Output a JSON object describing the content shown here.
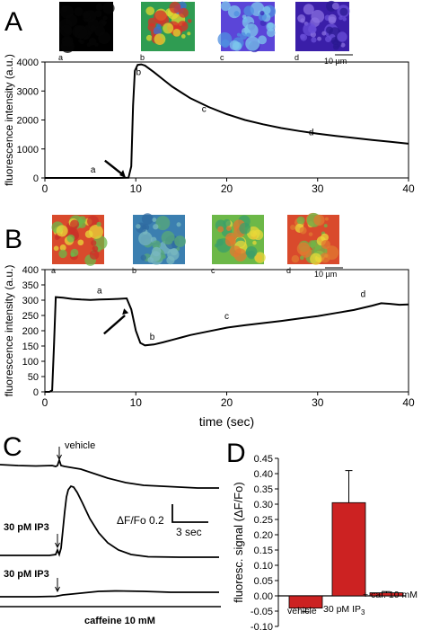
{
  "panels": {
    "A": {
      "letter": "A",
      "ylabel": "fluorescence intensity (a.u.)",
      "xticks": [
        "0",
        "10",
        "20",
        "30",
        "40"
      ],
      "yticks": [
        "0",
        "1000",
        "2000",
        "3000",
        "4000"
      ],
      "images": [
        {
          "label": "a",
          "colors": [
            "#000000",
            "#050505"
          ]
        },
        {
          "label": "b",
          "colors": [
            "#2f9c52",
            "#e0d832",
            "#d8322a",
            "#3d6fd0"
          ]
        },
        {
          "label": "c",
          "colors": [
            "#5b45d8",
            "#4f8fe0",
            "#7ec8ec",
            "#3a2cb8"
          ]
        },
        {
          "label": "d",
          "colors": [
            "#3a1ea8",
            "#6a4fd8",
            "#2a1890",
            "#8a70e0"
          ]
        }
      ],
      "scalebar": "10 µm",
      "curve_labels": [
        {
          "text": "a",
          "x": 5.3,
          "y": 180
        },
        {
          "text": "b",
          "x": 10.3,
          "y": 3550
        },
        {
          "text": "c",
          "x": 17.5,
          "y": 2280
        },
        {
          "text": "d",
          "x": 29.3,
          "y": 1480
        }
      ]
    },
    "B": {
      "letter": "B",
      "ylabel": "fluorescence intensity (a.u.)",
      "xlabel": "time (sec)",
      "xticks": [
        "0",
        "10",
        "20",
        "30",
        "40"
      ],
      "yticks": [
        "0",
        "50",
        "100",
        "150",
        "200",
        "250",
        "300",
        "350",
        "400"
      ],
      "images": [
        {
          "label": "a",
          "colors": [
            "#d94a2c",
            "#e8d838",
            "#6cb848",
            "#c83228"
          ]
        },
        {
          "label": "b",
          "colors": [
            "#3b7fb0",
            "#58a878",
            "#2f6aa0",
            "#7ab8c0"
          ]
        },
        {
          "label": "c",
          "colors": [
            "#6cb848",
            "#e8d838",
            "#e07a30",
            "#3b9f6a"
          ]
        },
        {
          "label": "d",
          "colors": [
            "#d94a2c",
            "#e8d838",
            "#6cb848",
            "#e07a30"
          ]
        }
      ],
      "scalebar": "10 µm",
      "curve_labels": [
        {
          "text": "a",
          "x": 6,
          "y": 322
        },
        {
          "text": "b",
          "x": 11.8,
          "y": 170
        },
        {
          "text": "c",
          "x": 20,
          "y": 238
        },
        {
          "text": "d",
          "x": 35,
          "y": 310
        }
      ]
    },
    "C": {
      "letter": "C",
      "labels": {
        "vehicle": "vehicle",
        "ip3_1": "30 pM IP3",
        "ip3_2": "30 pM IP3",
        "scale_y": "ΔF/Fo 0.2",
        "scale_x": "3 sec",
        "caffeine": "caffeine 10 mM"
      }
    },
    "D": {
      "letter": "D",
      "ylabel": "fluoresc. signal (ΔF/Fo)",
      "yticks": [
        "0.45",
        "0.40",
        "0.35",
        "0.30",
        "0.25",
        "0.20",
        "0.15",
        "0.10",
        "0.05",
        "0.00",
        "-0.05",
        "-0.10"
      ],
      "ip3_subscript": "3"
    }
  },
  "chart_data": [
    {
      "panel": "A",
      "type": "line",
      "xlabel": "",
      "ylabel": "fluorescence intensity (a.u.)",
      "xlim": [
        0,
        40
      ],
      "ylim": [
        0,
        4000
      ],
      "series": [
        {
          "x": [
            0,
            8.0,
            9.2,
            9.5,
            9.7,
            9.9,
            10.2,
            10.6,
            11,
            12,
            13,
            14,
            15,
            16,
            18,
            20,
            22,
            24,
            26,
            28,
            30,
            32,
            34,
            36,
            38,
            40
          ],
          "y": [
            0,
            0,
            5,
            400,
            2500,
            3700,
            3900,
            3920,
            3880,
            3650,
            3400,
            3150,
            2950,
            2750,
            2450,
            2200,
            2000,
            1850,
            1720,
            1620,
            1530,
            1450,
            1380,
            1310,
            1250,
            1180
          ]
        }
      ]
    },
    {
      "panel": "B",
      "type": "line",
      "xlabel": "time (sec)",
      "ylabel": "fluorescence intensity (a.u.)",
      "xlim": [
        0,
        40
      ],
      "ylim": [
        0,
        400
      ],
      "series": [
        {
          "x": [
            0,
            0.5,
            0.8,
            1.0,
            1.2,
            2,
            3,
            4,
            5,
            6,
            7,
            8,
            9,
            9.5,
            10,
            10.5,
            11,
            12,
            13,
            14,
            15,
            16,
            18,
            20,
            22,
            24,
            26,
            28,
            30,
            32,
            34,
            36,
            37,
            38,
            39,
            40
          ],
          "y": [
            0,
            0,
            5,
            150,
            310,
            308,
            304,
            302,
            301,
            302,
            303,
            304,
            306,
            270,
            200,
            160,
            152,
            155,
            162,
            170,
            178,
            186,
            198,
            210,
            218,
            225,
            232,
            240,
            248,
            258,
            268,
            282,
            290,
            288,
            285,
            286
          ]
        }
      ]
    },
    {
      "panel": "D",
      "type": "bar",
      "ylabel": "fluoresc. signal (ΔF/Fo)",
      "ylim": [
        -0.1,
        0.45
      ],
      "categories": [
        "vehicle",
        "30 pM IP",
        "+ caf. 10 mM"
      ],
      "values": [
        -0.04,
        0.305,
        0.01
      ],
      "errors": [
        0.012,
        0.105,
        0.004
      ],
      "color": "#cc2222"
    }
  ]
}
